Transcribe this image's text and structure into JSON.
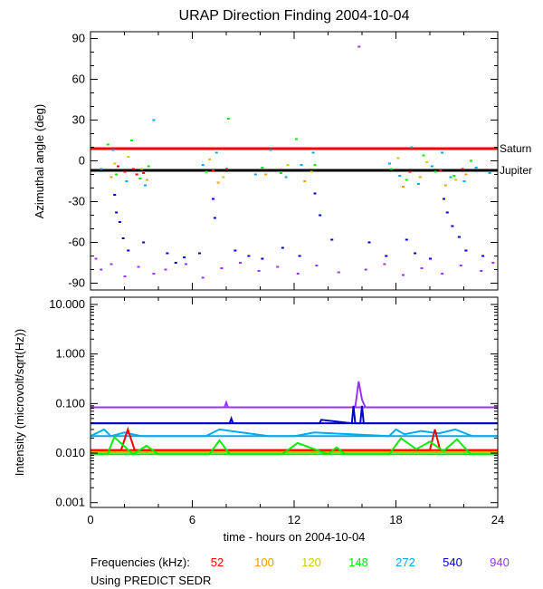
{
  "chart_data": [
    {
      "type": "scatter",
      "title": "URAP Direction Finding  2004-10-04",
      "xlabel": "",
      "ylabel": "Azimuthal angle (deg)",
      "xlim": [
        0,
        24
      ],
      "ylim": [
        -95,
        95
      ],
      "x_ticks": [
        0,
        6,
        12,
        18,
        24
      ],
      "y_ticks": [
        90,
        60,
        30,
        0,
        -30,
        -60,
        -90
      ],
      "y_tick_labels": [
        "90",
        "60",
        "30",
        "0",
        "-30",
        "-60",
        "-90"
      ],
      "reference_lines": [
        {
          "name": "Saturn",
          "y": 9,
          "color": "#ff0000"
        },
        {
          "name": "Jupiter",
          "y": -7,
          "color": "#000000"
        }
      ],
      "series": [
        {
          "name": "52",
          "color": "#ff0000",
          "points": [
            [
              2.0,
              -8
            ],
            [
              2.5,
              -6
            ],
            [
              2.7,
              -10
            ],
            [
              1.6,
              -4
            ],
            [
              3.1,
              -9
            ],
            [
              7.2,
              -7
            ],
            [
              8.0,
              -6
            ],
            [
              18.8,
              -8
            ],
            [
              20.6,
              -7
            ],
            [
              21.9,
              -6
            ]
          ]
        },
        {
          "name": "100",
          "color": "#ff9900",
          "points": [
            [
              1.2,
              -12
            ],
            [
              3.3,
              -14
            ],
            [
              7.5,
              -16
            ],
            [
              10.3,
              -10
            ],
            [
              12.6,
              -15
            ],
            [
              18.4,
              -19
            ],
            [
              19.4,
              -12
            ],
            [
              20.9,
              -18
            ],
            [
              22.1,
              -10
            ]
          ]
        },
        {
          "name": "120",
          "color": "#cccc00",
          "points": [
            [
              1.4,
              -2
            ],
            [
              2.2,
              3
            ],
            [
              3.0,
              -6
            ],
            [
              7.0,
              1
            ],
            [
              7.8,
              -12
            ],
            [
              11.6,
              -3
            ],
            [
              13.0,
              -8
            ],
            [
              18.1,
              2
            ],
            [
              19.8,
              -1
            ],
            [
              21.5,
              -14
            ]
          ]
        },
        {
          "name": "148",
          "color": "#00ee00",
          "points": [
            [
              1.0,
              12
            ],
            [
              1.5,
              -10
            ],
            [
              2.4,
              15
            ],
            [
              2.9,
              -13
            ],
            [
              3.4,
              -4
            ],
            [
              6.8,
              -8
            ],
            [
              8.1,
              31
            ],
            [
              10.1,
              -5
            ],
            [
              11.2,
              -9
            ],
            [
              12.1,
              16
            ],
            [
              13.2,
              -3
            ],
            [
              17.7,
              -6
            ],
            [
              18.6,
              -14
            ],
            [
              19.6,
              4
            ],
            [
              20.3,
              -8
            ],
            [
              21.4,
              -11
            ],
            [
              22.4,
              0
            ]
          ]
        },
        {
          "name": "272",
          "color": "#00aaee",
          "points": [
            [
              0.6,
              -6
            ],
            [
              1.3,
              8
            ],
            [
              2.1,
              -15
            ],
            [
              3.2,
              -18
            ],
            [
              3.7,
              30
            ],
            [
              6.6,
              -3
            ],
            [
              7.4,
              6
            ],
            [
              9.7,
              -10
            ],
            [
              10.6,
              8
            ],
            [
              11.5,
              -12
            ],
            [
              12.4,
              -3
            ],
            [
              13.1,
              6
            ],
            [
              17.6,
              -2
            ],
            [
              18.2,
              -11
            ],
            [
              18.9,
              10
            ],
            [
              19.3,
              -17
            ],
            [
              20.1,
              -4
            ],
            [
              20.7,
              6
            ],
            [
              21.2,
              -12
            ],
            [
              22.0,
              -15
            ],
            [
              22.7,
              -5
            ],
            [
              23.5,
              -9
            ]
          ]
        },
        {
          "name": "540",
          "color": "#0000cc",
          "points": [
            [
              1.4,
              -25
            ],
            [
              1.5,
              -38
            ],
            [
              1.7,
              -45
            ],
            [
              1.9,
              -57
            ],
            [
              2.2,
              -66
            ],
            [
              3.1,
              -60
            ],
            [
              4.5,
              -68
            ],
            [
              5.0,
              -75
            ],
            [
              5.5,
              -71
            ],
            [
              6.4,
              -68
            ],
            [
              7.2,
              -28
            ],
            [
              7.3,
              -42
            ],
            [
              8.5,
              -66
            ],
            [
              9.3,
              -70
            ],
            [
              10.1,
              -72
            ],
            [
              11.3,
              -64
            ],
            [
              12.3,
              -70
            ],
            [
              13.2,
              -24
            ],
            [
              13.5,
              -40
            ],
            [
              14.2,
              -58
            ],
            [
              16.4,
              -60
            ],
            [
              17.4,
              -70
            ],
            [
              18.6,
              -58
            ],
            [
              19.1,
              -68
            ],
            [
              20.0,
              -72
            ],
            [
              20.8,
              -28
            ],
            [
              21.0,
              -38
            ],
            [
              21.3,
              -48
            ],
            [
              21.7,
              -56
            ],
            [
              22.1,
              -66
            ],
            [
              23.1,
              -70
            ]
          ]
        },
        {
          "name": "940",
          "color": "#9933ff",
          "points": [
            [
              0.3,
              -72
            ],
            [
              0.6,
              -80
            ],
            [
              1.2,
              -76
            ],
            [
              2.0,
              -85
            ],
            [
              2.8,
              -78
            ],
            [
              3.7,
              -83
            ],
            [
              4.4,
              -80
            ],
            [
              5.6,
              -76
            ],
            [
              6.6,
              -86
            ],
            [
              7.7,
              -79
            ],
            [
              8.8,
              -75
            ],
            [
              9.9,
              -81
            ],
            [
              11.0,
              -78
            ],
            [
              12.2,
              -83
            ],
            [
              13.3,
              -77
            ],
            [
              14.6,
              -82
            ],
            [
              15.8,
              84
            ],
            [
              16.2,
              -80
            ],
            [
              17.3,
              -76
            ],
            [
              18.4,
              -84
            ],
            [
              19.5,
              -79
            ],
            [
              20.7,
              -83
            ],
            [
              21.8,
              -77
            ],
            [
              23.0,
              -81
            ],
            [
              23.7,
              -75
            ]
          ]
        }
      ]
    },
    {
      "type": "line",
      "title": "",
      "xlabel": "time - hours on 2004-10-04",
      "ylabel": "Intensity (microvolt/sqrt(Hz))",
      "xlim": [
        0,
        24
      ],
      "ylim": [
        0.0008,
        14
      ],
      "yscale": "log",
      "x_ticks": [
        0,
        6,
        12,
        18,
        24
      ],
      "x_tick_labels": [
        "0",
        "6",
        "12",
        "18",
        "24"
      ],
      "y_ticks": [
        10,
        1,
        0.1,
        0.01,
        0.001
      ],
      "y_tick_labels": [
        "10.000",
        "1.000",
        "0.100",
        "0.010",
        "0.001"
      ],
      "reference_levels": [
        {
          "name": "940",
          "y": 0.084,
          "color": "#9933ff"
        },
        {
          "name": "540",
          "y": 0.04,
          "color": "#0000cc"
        },
        {
          "name": "272",
          "y": 0.022,
          "color": "#00aaee"
        },
        {
          "name": "52",
          "y": 0.0115,
          "color": "#ff0000"
        },
        {
          "name": "100",
          "y": 0.0105,
          "color": "#ff9900"
        },
        {
          "name": "148",
          "y": 0.0095,
          "color": "#00ee00"
        }
      ],
      "series": [
        {
          "name": "940",
          "color": "#9933ff",
          "x": [
            0,
            7.9,
            8.0,
            8.1,
            15.6,
            15.8,
            16.0,
            16.2,
            24
          ],
          "y": [
            0.084,
            0.084,
            0.105,
            0.084,
            0.084,
            0.28,
            0.12,
            0.084,
            0.084
          ]
        },
        {
          "name": "540",
          "color": "#0000cc",
          "x": [
            0,
            8.2,
            8.3,
            8.4,
            13.5,
            13.6,
            15.4,
            15.5,
            15.6,
            15.9,
            16.0,
            16.1,
            24
          ],
          "y": [
            0.04,
            0.04,
            0.05,
            0.04,
            0.04,
            0.047,
            0.04,
            0.09,
            0.04,
            0.04,
            0.09,
            0.04,
            0.04
          ]
        },
        {
          "name": "272",
          "color": "#00aaee",
          "x": [
            0,
            0.8,
            1.2,
            2.0,
            3.0,
            6.8,
            7.6,
            10.5,
            12.0,
            13.2,
            17.6,
            18.0,
            18.5,
            19.5,
            20.5,
            21.5,
            22.5,
            24
          ],
          "y": [
            0.022,
            0.03,
            0.022,
            0.026,
            0.022,
            0.022,
            0.03,
            0.022,
            0.022,
            0.026,
            0.022,
            0.03,
            0.024,
            0.028,
            0.025,
            0.03,
            0.022,
            0.022
          ]
        },
        {
          "name": "52",
          "color": "#ff0000",
          "x": [
            0,
            1.8,
            2.2,
            2.6,
            12.5,
            17.5,
            20.0,
            20.3,
            20.6,
            24
          ],
          "y": [
            0.0115,
            0.0115,
            0.03,
            0.0115,
            0.0115,
            0.0115,
            0.0115,
            0.03,
            0.0115,
            0.0115
          ]
        },
        {
          "name": "148",
          "color": "#00ee00",
          "x": [
            0,
            1.0,
            1.4,
            2.5,
            3.3,
            4.0,
            7.0,
            7.6,
            8.2,
            11.3,
            12.2,
            14.0,
            14.5,
            15.0,
            17.6,
            18.3,
            19.2,
            20.0,
            20.8,
            21.6,
            22.4,
            24
          ],
          "y": [
            0.0095,
            0.0095,
            0.021,
            0.0095,
            0.014,
            0.0095,
            0.0095,
            0.018,
            0.0095,
            0.0095,
            0.016,
            0.0095,
            0.013,
            0.0095,
            0.0095,
            0.02,
            0.012,
            0.017,
            0.011,
            0.019,
            0.0095,
            0.0095
          ]
        }
      ]
    }
  ],
  "footer": {
    "frequencies_label": "Frequencies (kHz):",
    "frequencies": [
      {
        "label": "52",
        "color": "#ff0000"
      },
      {
        "label": "100",
        "color": "#ff9900"
      },
      {
        "label": "120",
        "color": "#cccc00"
      },
      {
        "label": "148",
        "color": "#00ee00"
      },
      {
        "label": "272",
        "color": "#00aaee"
      },
      {
        "label": "540",
        "color": "#0000cc"
      },
      {
        "label": "940",
        "color": "#9933ff"
      }
    ],
    "source_note": "Using PREDICT SEDR"
  }
}
